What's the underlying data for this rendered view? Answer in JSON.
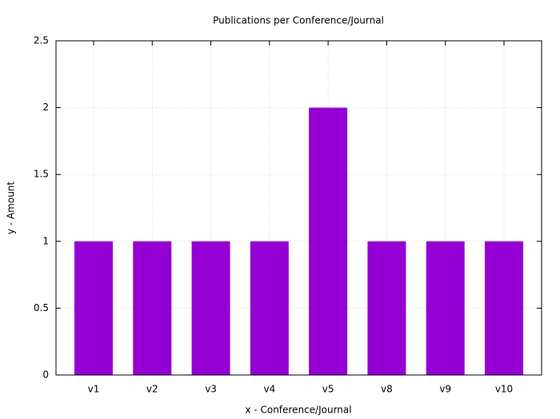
{
  "chart_data": {
    "type": "bar",
    "title": "Publications per Conference/Journal",
    "x_label": "x - Conference/Journal",
    "y_label": "y - Amount",
    "categories": [
      "v1",
      "v2",
      "v3",
      "v4",
      "v5",
      "v8",
      "v9",
      "v10"
    ],
    "values": [
      1,
      1,
      1,
      1,
      2,
      1,
      1,
      1
    ],
    "color": "#9400d3",
    "ylim": [
      0,
      2.5
    ],
    "yticks": [
      0,
      0.5,
      1,
      1.5,
      2,
      2.5
    ],
    "grid": true
  }
}
